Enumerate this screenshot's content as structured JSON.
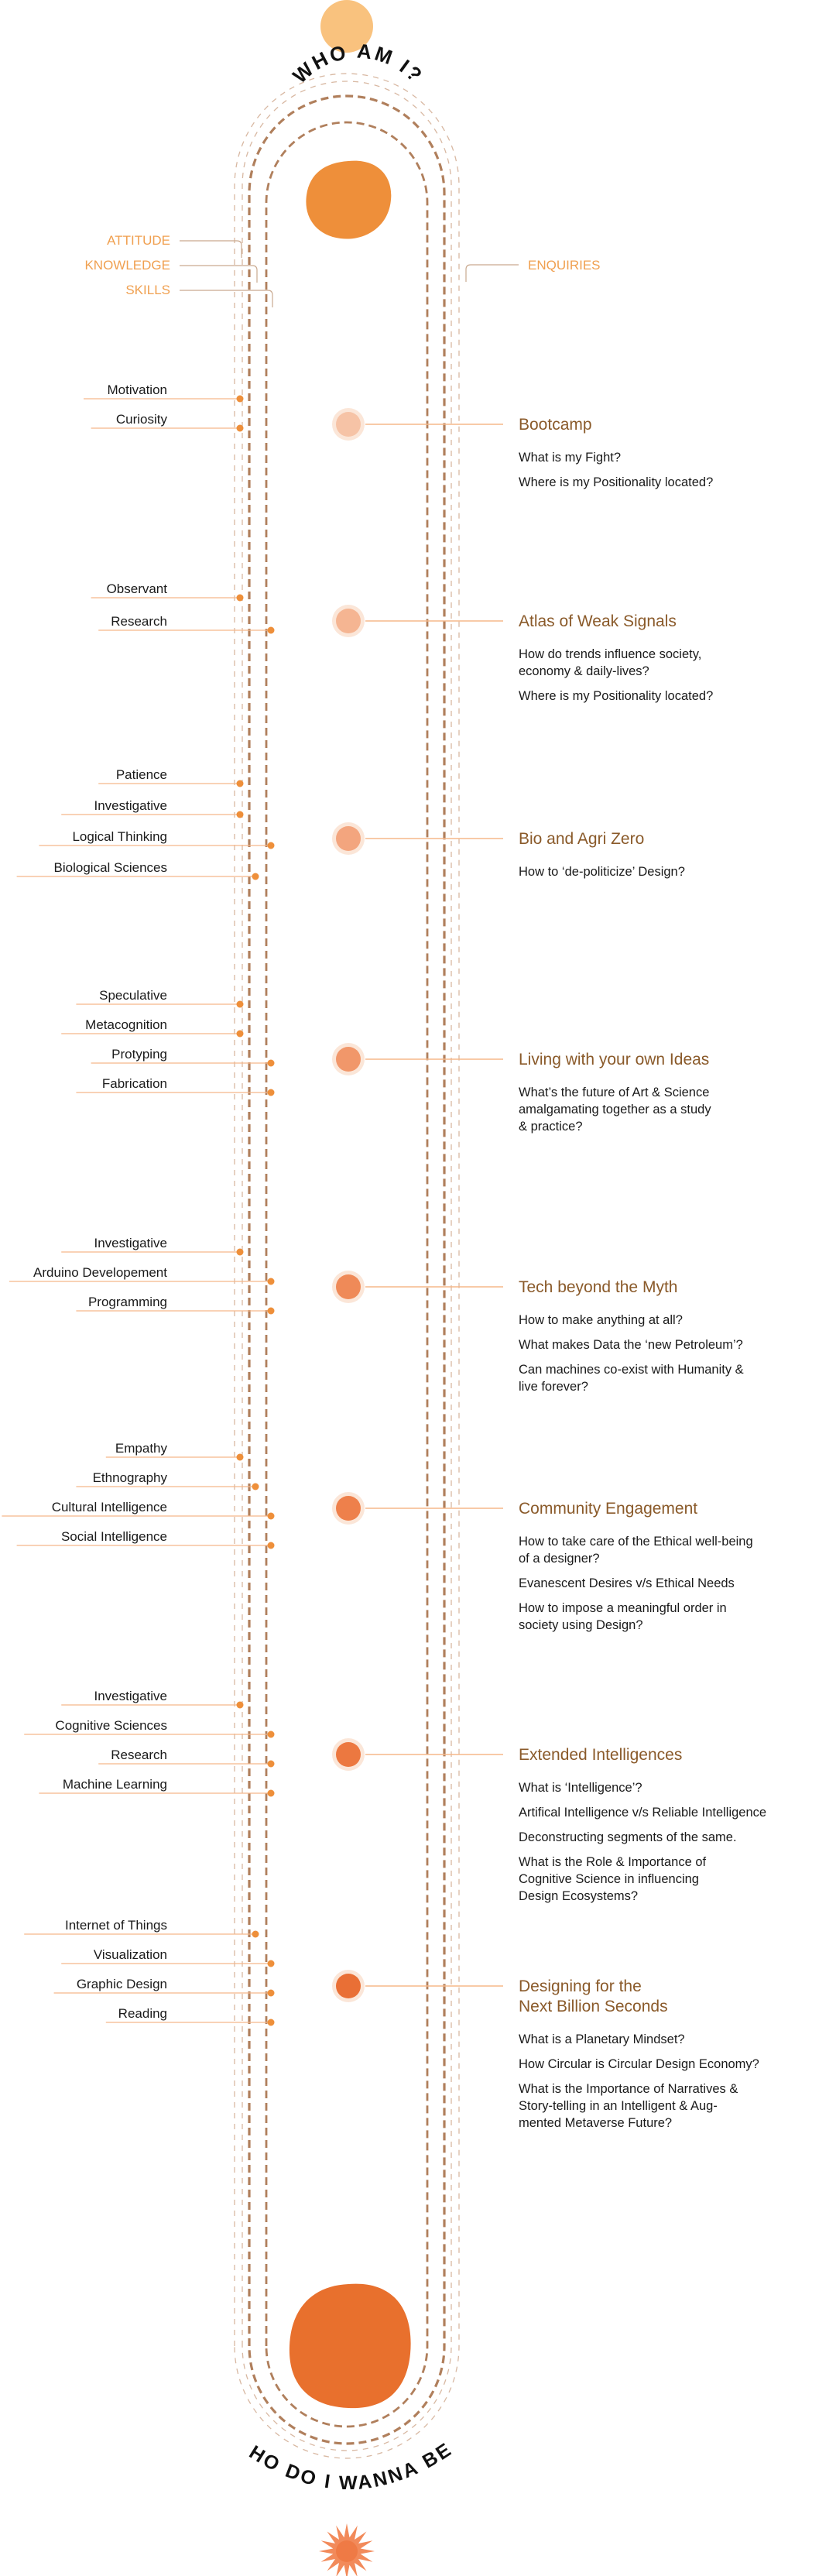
{
  "header": {
    "title": "WHO AM I?"
  },
  "footer": {
    "title": "WHO DO I WANNA BE?"
  },
  "legend": {
    "left": [
      "ATTITUDE",
      "KNOWLEDGE",
      "SKILLS"
    ],
    "right": "ENQUIRIES"
  },
  "colors": {
    "accent_light": "#f9c27e",
    "accent_orange": "#ee8f3a",
    "accent_deep": "#e8702d",
    "track_brown": "#b07f5c",
    "title_brown": "#8a5a2a",
    "legend_orange": "#f0a050",
    "line_light": "#f5b88a"
  },
  "stages": [
    {
      "title": [
        "Bootcamp"
      ],
      "node_color": "#f6c3a6",
      "skills": [
        {
          "label": "Motivation",
          "track": 0
        },
        {
          "label": "Curiosity",
          "track": 0
        }
      ],
      "questions": [
        [
          "What is my Fight?"
        ],
        [
          "Where is my Positionality located?"
        ]
      ]
    },
    {
      "title": [
        "Atlas of Weak Signals"
      ],
      "node_color": "#f5b592",
      "skills": [
        {
          "label": "Observant",
          "track": 0
        },
        {
          "label": "Research",
          "track": 2
        }
      ],
      "questions": [
        [
          "How do trends influence society,",
          "economy & daily-lives?"
        ],
        [
          "Where is my Positionality located?"
        ]
      ]
    },
    {
      "title": [
        "Bio and Agri Zero"
      ],
      "node_color": "#f3a57e",
      "skills": [
        {
          "label": "Patience",
          "track": 0
        },
        {
          "label": "Investigative",
          "track": 0
        },
        {
          "label": "Logical Thinking",
          "track": 2
        },
        {
          "label": "Biological Sciences",
          "track": 1
        }
      ],
      "questions": [
        [
          "How to ‘de-politicize’ Design?"
        ]
      ]
    },
    {
      "title": [
        "Living with your own Ideas"
      ],
      "node_color": "#f1976a",
      "skills": [
        {
          "label": "Speculative",
          "track": 0
        },
        {
          "label": "Metacognition",
          "track": 0
        },
        {
          "label": "Protyping",
          "track": 2
        },
        {
          "label": "Fabrication",
          "track": 2
        }
      ],
      "questions": [
        [
          "What’s the future of Art & Science",
          "amalgamating together as a study",
          "& practice?"
        ]
      ]
    },
    {
      "title": [
        "Tech beyond the Myth"
      ],
      "node_color": "#ef8a58",
      "skills": [
        {
          "label": "Investigative",
          "track": 0
        },
        {
          "label": "Arduino Developement",
          "track": 2
        },
        {
          "label": "Programming",
          "track": 2
        }
      ],
      "questions": [
        [
          "How to make anything at all?"
        ],
        [
          "What makes Data the ‘new Petroleum’?"
        ],
        [
          "Can machines co-exist with Humanity &",
          "live forever?"
        ]
      ]
    },
    {
      "title": [
        "Community Engagement"
      ],
      "node_color": "#ee804b",
      "skills": [
        {
          "label": "Empathy",
          "track": 0
        },
        {
          "label": "Ethnography",
          "track": 1
        },
        {
          "label": "Cultural Intelligence",
          "track": 2
        },
        {
          "label": "Social Intelligence",
          "track": 2
        }
      ],
      "questions": [
        [
          "How to take care of the Ethical well-being",
          "of a designer?"
        ],
        [
          "Evanescent Desires v/s Ethical Needs"
        ],
        [
          "How to impose a meaningful order in",
          "society using Design?"
        ]
      ]
    },
    {
      "title": [
        "Extended Intelligences"
      ],
      "node_color": "#ec7840",
      "skills": [
        {
          "label": "Investigative",
          "track": 0
        },
        {
          "label": "Cognitive Sciences",
          "track": 2
        },
        {
          "label": "Research",
          "track": 2
        },
        {
          "label": "Machine Learning",
          "track": 2
        }
      ],
      "questions": [
        [
          "What is ‘Intelligence’?"
        ],
        [
          "Artifical Intelligence v/s Reliable Intelligence"
        ],
        [
          "Deconstructing segments of the same."
        ],
        [
          "What is the Role & Importance of",
          "Cognitive Science in influencing",
          "Design Ecosystems?"
        ]
      ]
    },
    {
      "title": [
        "Designing for the",
        "Next Billion Seconds"
      ],
      "node_color": "#e96f35",
      "skills": [
        {
          "label": "Internet of Things",
          "track": 1
        },
        {
          "label": "Visualization",
          "track": 2
        },
        {
          "label": "Graphic Design",
          "track": 2
        },
        {
          "label": "Reading",
          "track": 2
        }
      ],
      "questions": [
        [
          "What is a Planetary Mindset?"
        ],
        [
          "How Circular is Circular Design Economy?"
        ],
        [
          "What is the Importance of Narratives &",
          "Story-telling in an Intelligent & Aug-",
          "mented Metaverse Future?"
        ]
      ]
    }
  ]
}
